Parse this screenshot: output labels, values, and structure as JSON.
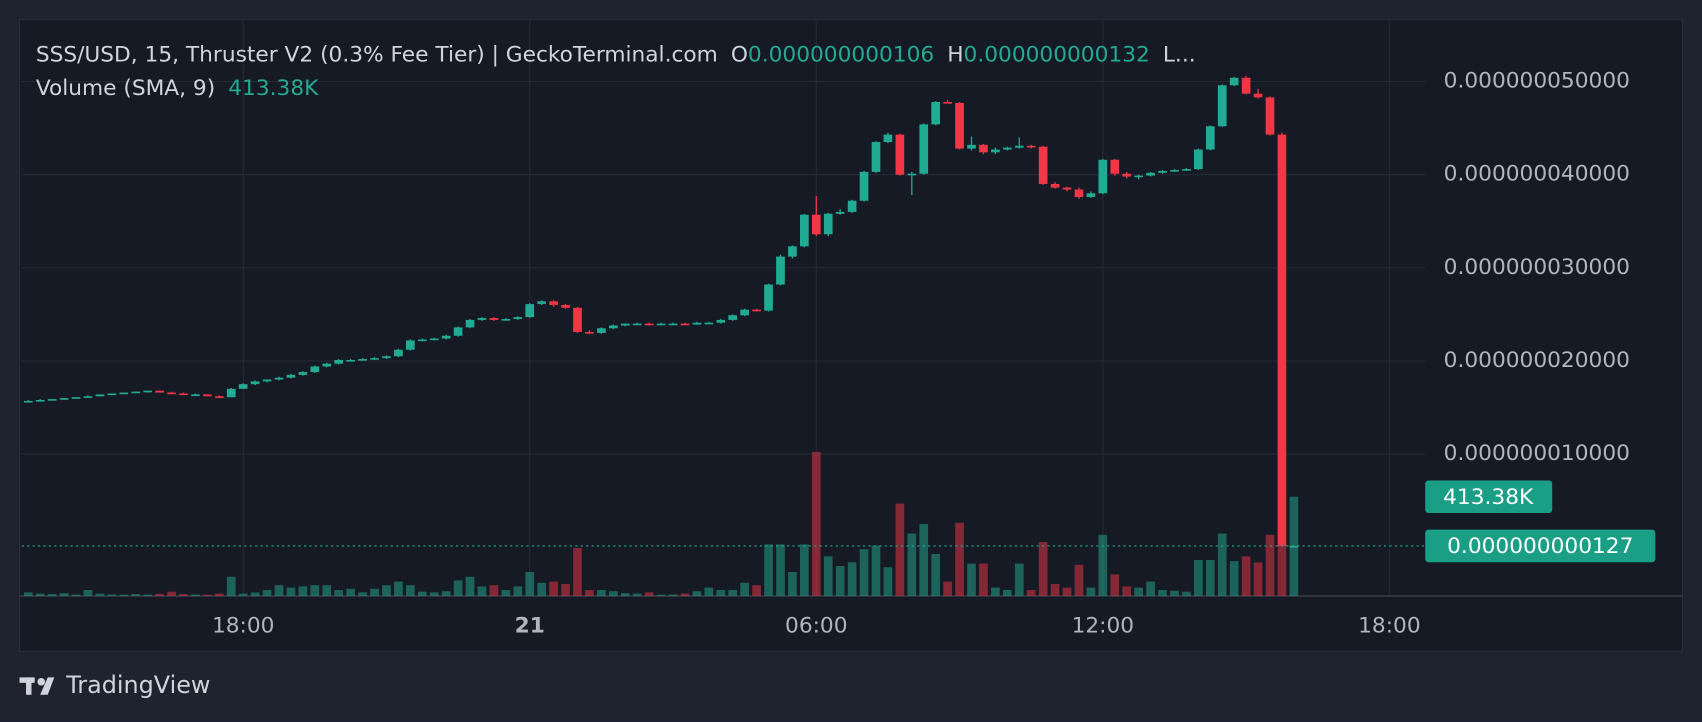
{
  "chart_data": {
    "type": "candlestick",
    "legend": {
      "symbol": "SSS/USD, 15, Thruster V2 (0.3% Fee Tier) | GeckoTerminal.com",
      "open_key": "O",
      "open": {
        "value": 1.06e-10,
        "label": "0.000000000106"
      },
      "high_key": "H",
      "high": {
        "value": 1.32e-10,
        "label": "0.000000000132"
      },
      "low_key": "L..."
    },
    "volume_legend": {
      "name": "Volume (SMA, 9)",
      "value": {
        "value": 413380,
        "label": "413.38K"
      }
    },
    "price_badge": {
      "value": 1.27e-10,
      "label": "0.000000000127"
    },
    "volume_badge": {
      "value": 413380,
      "label": "413.38K"
    },
    "branding": "TradingView",
    "up_color": "#22ab94",
    "down_color": "#f23645",
    "xlim": [
      -0.55,
      117
    ],
    "xticks": [
      {
        "value": 18,
        "label": "18:00"
      },
      {
        "value": 42,
        "label": "21"
      },
      {
        "value": 66,
        "label": "06:00"
      },
      {
        "value": 90,
        "label": "12:00"
      },
      {
        "value": 114,
        "label": "18:00"
      }
    ],
    "ylim": [
      -5.25e-09,
      5.665e-08
    ],
    "yticks": [
      {
        "value": 1e-08,
        "label": "0.000000010000"
      },
      {
        "value": 2e-08,
        "label": "0.000000020000"
      },
      {
        "value": 3e-08,
        "label": "0.000000030000"
      },
      {
        "value": 4e-08,
        "label": "0.000000040000"
      },
      {
        "value": 5e-08,
        "label": "0.000000050000"
      }
    ],
    "vlim": [
      0,
      2400000
    ],
    "grid": true,
    "ohlc": [
      [
        1.56e-08,
        1.58e-08,
        1.56e-08,
        1.57e-08
      ],
      [
        1.57e-08,
        1.59e-08,
        1.57e-08,
        1.58e-08
      ],
      [
        1.58e-08,
        1.59e-08,
        1.58e-08,
        1.59e-08
      ],
      [
        1.59e-08,
        1.6e-08,
        1.58e-08,
        1.6e-08
      ],
      [
        1.6e-08,
        1.61e-08,
        1.6e-08,
        1.61e-08
      ],
      [
        1.61e-08,
        1.63e-08,
        1.61e-08,
        1.62e-08
      ],
      [
        1.62e-08,
        1.64e-08,
        1.62e-08,
        1.64e-08
      ],
      [
        1.64e-08,
        1.65e-08,
        1.63e-08,
        1.65e-08
      ],
      [
        1.65e-08,
        1.66e-08,
        1.65e-08,
        1.66e-08
      ],
      [
        1.66e-08,
        1.67e-08,
        1.66e-08,
        1.67e-08
      ],
      [
        1.67e-08,
        1.68e-08,
        1.66e-08,
        1.68e-08
      ],
      [
        1.68e-08,
        1.68e-08,
        1.66e-08,
        1.66e-08
      ],
      [
        1.66e-08,
        1.67e-08,
        1.65e-08,
        1.65e-08
      ],
      [
        1.65e-08,
        1.66e-08,
        1.64e-08,
        1.64e-08
      ],
      [
        1.64e-08,
        1.65e-08,
        1.63e-08,
        1.64e-08
      ],
      [
        1.64e-08,
        1.64e-08,
        1.62e-08,
        1.62e-08
      ],
      [
        1.62e-08,
        1.63e-08,
        1.6e-08,
        1.61e-08
      ],
      [
        1.61e-08,
        1.71e-08,
        1.61e-08,
        1.7e-08
      ],
      [
        1.7e-08,
        1.76e-08,
        1.7e-08,
        1.75e-08
      ],
      [
        1.75e-08,
        1.79e-08,
        1.74e-08,
        1.78e-08
      ],
      [
        1.78e-08,
        1.8e-08,
        1.77e-08,
        1.8e-08
      ],
      [
        1.8e-08,
        1.83e-08,
        1.79e-08,
        1.82e-08
      ],
      [
        1.82e-08,
        1.86e-08,
        1.81e-08,
        1.85e-08
      ],
      [
        1.85e-08,
        1.89e-08,
        1.84e-08,
        1.88e-08
      ],
      [
        1.88e-08,
        1.95e-08,
        1.87e-08,
        1.94e-08
      ],
      [
        1.94e-08,
        1.98e-08,
        1.93e-08,
        1.97e-08
      ],
      [
        1.97e-08,
        2.02e-08,
        1.96e-08,
        2.01e-08
      ],
      [
        2.01e-08,
        2.02e-08,
        2e-08,
        2.01e-08
      ],
      [
        2.01e-08,
        2.03e-08,
        2e-08,
        2.02e-08
      ],
      [
        2.02e-08,
        2.04e-08,
        2.01e-08,
        2.03e-08
      ],
      [
        2.03e-08,
        2.06e-08,
        2.02e-08,
        2.05e-08
      ],
      [
        2.05e-08,
        2.13e-08,
        2.04e-08,
        2.12e-08
      ],
      [
        2.12e-08,
        2.23e-08,
        2.11e-08,
        2.22e-08
      ],
      [
        2.22e-08,
        2.24e-08,
        2.21e-08,
        2.23e-08
      ],
      [
        2.23e-08,
        2.25e-08,
        2.22e-08,
        2.24e-08
      ],
      [
        2.24e-08,
        2.28e-08,
        2.23e-08,
        2.27e-08
      ],
      [
        2.27e-08,
        2.37e-08,
        2.26e-08,
        2.36e-08
      ],
      [
        2.36e-08,
        2.45e-08,
        2.35e-08,
        2.44e-08
      ],
      [
        2.44e-08,
        2.47e-08,
        2.43e-08,
        2.46e-08
      ],
      [
        2.46e-08,
        2.47e-08,
        2.43e-08,
        2.44e-08
      ],
      [
        2.44e-08,
        2.46e-08,
        2.43e-08,
        2.45e-08
      ],
      [
        2.45e-08,
        2.48e-08,
        2.44e-08,
        2.47e-08
      ],
      [
        2.47e-08,
        2.62e-08,
        2.46e-08,
        2.61e-08
      ],
      [
        2.61e-08,
        2.65e-08,
        2.6e-08,
        2.64e-08
      ],
      [
        2.64e-08,
        2.65e-08,
        2.58e-08,
        2.6e-08
      ],
      [
        2.6e-08,
        2.61e-08,
        2.56e-08,
        2.57e-08
      ],
      [
        2.57e-08,
        2.58e-08,
        2.3e-08,
        2.31e-08
      ],
      [
        2.31e-08,
        2.33e-08,
        2.29e-08,
        2.3e-08
      ],
      [
        2.3e-08,
        2.36e-08,
        2.29e-08,
        2.35e-08
      ],
      [
        2.35e-08,
        2.39e-08,
        2.34e-08,
        2.38e-08
      ],
      [
        2.38e-08,
        2.4e-08,
        2.37e-08,
        2.4e-08
      ],
      [
        2.4e-08,
        2.41e-08,
        2.39e-08,
        2.4e-08
      ],
      [
        2.4e-08,
        2.41e-08,
        2.38e-08,
        2.39e-08
      ],
      [
        2.39e-08,
        2.41e-08,
        2.38e-08,
        2.4e-08
      ],
      [
        2.4e-08,
        2.41e-08,
        2.39e-08,
        2.4e-08
      ],
      [
        2.4e-08,
        2.41e-08,
        2.39e-08,
        2.39e-08
      ],
      [
        2.39e-08,
        2.42e-08,
        2.39e-08,
        2.41e-08
      ],
      [
        2.41e-08,
        2.42e-08,
        2.4e-08,
        2.41e-08
      ],
      [
        2.41e-08,
        2.45e-08,
        2.4e-08,
        2.44e-08
      ],
      [
        2.44e-08,
        2.5e-08,
        2.43e-08,
        2.49e-08
      ],
      [
        2.49e-08,
        2.56e-08,
        2.48e-08,
        2.55e-08
      ],
      [
        2.55e-08,
        2.56e-08,
        2.53e-08,
        2.54e-08
      ],
      [
        2.54e-08,
        2.83e-08,
        2.53e-08,
        2.82e-08
      ],
      [
        2.82e-08,
        3.14e-08,
        2.81e-08,
        3.12e-08
      ],
      [
        3.12e-08,
        3.24e-08,
        3.1e-08,
        3.23e-08
      ],
      [
        3.23e-08,
        3.58e-08,
        3.22e-08,
        3.57e-08
      ],
      [
        3.57e-08,
        3.77e-08,
        3.34e-08,
        3.36e-08
      ],
      [
        3.36e-08,
        3.59e-08,
        3.34e-08,
        3.58e-08
      ],
      [
        3.58e-08,
        3.63e-08,
        3.57e-08,
        3.6e-08
      ],
      [
        3.6e-08,
        3.73e-08,
        3.59e-08,
        3.72e-08
      ],
      [
        3.72e-08,
        4.04e-08,
        3.71e-08,
        4.03e-08
      ],
      [
        4.03e-08,
        4.36e-08,
        4.02e-08,
        4.35e-08
      ],
      [
        4.35e-08,
        4.45e-08,
        4.34e-08,
        4.43e-08
      ],
      [
        4.43e-08,
        4.44e-08,
        3.99e-08,
        4e-08
      ],
      [
        4e-08,
        4.03e-08,
        3.78e-08,
        4.01e-08
      ],
      [
        4.01e-08,
        4.55e-08,
        4e-08,
        4.54e-08
      ],
      [
        4.54e-08,
        4.79e-08,
        4.53e-08,
        4.78e-08
      ],
      [
        4.78e-08,
        4.8e-08,
        4.77e-08,
        4.77e-08
      ],
      [
        4.77e-08,
        4.78e-08,
        4.27e-08,
        4.28e-08
      ],
      [
        4.28e-08,
        4.41e-08,
        4.26e-08,
        4.32e-08
      ],
      [
        4.32e-08,
        4.33e-08,
        4.22e-08,
        4.24e-08
      ],
      [
        4.24e-08,
        4.29e-08,
        4.22e-08,
        4.27e-08
      ],
      [
        4.27e-08,
        4.3e-08,
        4.26e-08,
        4.29e-08
      ],
      [
        4.29e-08,
        4.4e-08,
        4.28e-08,
        4.31e-08
      ],
      [
        4.31e-08,
        4.32e-08,
        4.28e-08,
        4.3e-08
      ],
      [
        4.3e-08,
        4.31e-08,
        3.89e-08,
        3.9e-08
      ],
      [
        3.9e-08,
        3.92e-08,
        3.85e-08,
        3.86e-08
      ],
      [
        3.86e-08,
        3.87e-08,
        3.82e-08,
        3.84e-08
      ],
      [
        3.84e-08,
        3.86e-08,
        3.74e-08,
        3.76e-08
      ],
      [
        3.76e-08,
        3.82e-08,
        3.75e-08,
        3.8e-08
      ],
      [
        3.8e-08,
        4.17e-08,
        3.79e-08,
        4.16e-08
      ],
      [
        4.16e-08,
        4.17e-08,
        3.99e-08,
        4.01e-08
      ],
      [
        4.01e-08,
        4.03e-08,
        3.96e-08,
        3.98e-08
      ],
      [
        3.98e-08,
        4e-08,
        3.95e-08,
        3.99e-08
      ],
      [
        3.99e-08,
        4.03e-08,
        3.98e-08,
        4.02e-08
      ],
      [
        4.02e-08,
        4.05e-08,
        4.01e-08,
        4.04e-08
      ],
      [
        4.04e-08,
        4.06e-08,
        4.03e-08,
        4.05e-08
      ],
      [
        4.05e-08,
        4.07e-08,
        4.04e-08,
        4.06e-08
      ],
      [
        4.06e-08,
        4.28e-08,
        4.05e-08,
        4.27e-08
      ],
      [
        4.27e-08,
        4.53e-08,
        4.26e-08,
        4.52e-08
      ],
      [
        4.52e-08,
        4.97e-08,
        4.51e-08,
        4.96e-08
      ],
      [
        4.96e-08,
        5.05e-08,
        4.95e-08,
        5.04e-08
      ],
      [
        5.04e-08,
        5.06e-08,
        4.86e-08,
        4.87e-08
      ],
      [
        4.87e-08,
        4.92e-08,
        4.82e-08,
        4.83e-08
      ],
      [
        4.83e-08,
        4.84e-08,
        4.42e-08,
        4.43e-08
      ],
      [
        4.43e-08,
        4.45e-08,
        1.06e-10,
        1.06e-10
      ],
      [
        1.06e-10,
        1.32e-10,
        1e-10,
        1.27e-10
      ]
    ],
    "volume": [
      15000,
      10000,
      8000,
      12000,
      6000,
      25000,
      10000,
      6000,
      5000,
      8000,
      6000,
      9000,
      18000,
      8000,
      6000,
      5000,
      10000,
      80000,
      10000,
      15000,
      25000,
      45000,
      35000,
      40000,
      45000,
      45000,
      25000,
      30000,
      15000,
      30000,
      45000,
      60000,
      45000,
      18000,
      15000,
      20000,
      65000,
      80000,
      40000,
      45000,
      25000,
      40000,
      100000,
      55000,
      60000,
      50000,
      200000,
      25000,
      25000,
      20000,
      12000,
      10000,
      15000,
      5000,
      6000,
      10000,
      20000,
      35000,
      25000,
      25000,
      55000,
      45000,
      215000,
      215000,
      100000,
      215000,
      600000,
      165000,
      125000,
      140000,
      195000,
      210000,
      120000,
      385000,
      260000,
      300000,
      175000,
      60000,
      305000,
      135000,
      135000,
      35000,
      25000,
      135000,
      25000,
      225000,
      50000,
      35000,
      130000,
      35000,
      255000,
      90000,
      40000,
      35000,
      60000,
      25000,
      22000,
      18000,
      150000,
      150000,
      260000,
      145000,
      165000,
      140000,
      255000,
      215000,
      413380
    ]
  }
}
